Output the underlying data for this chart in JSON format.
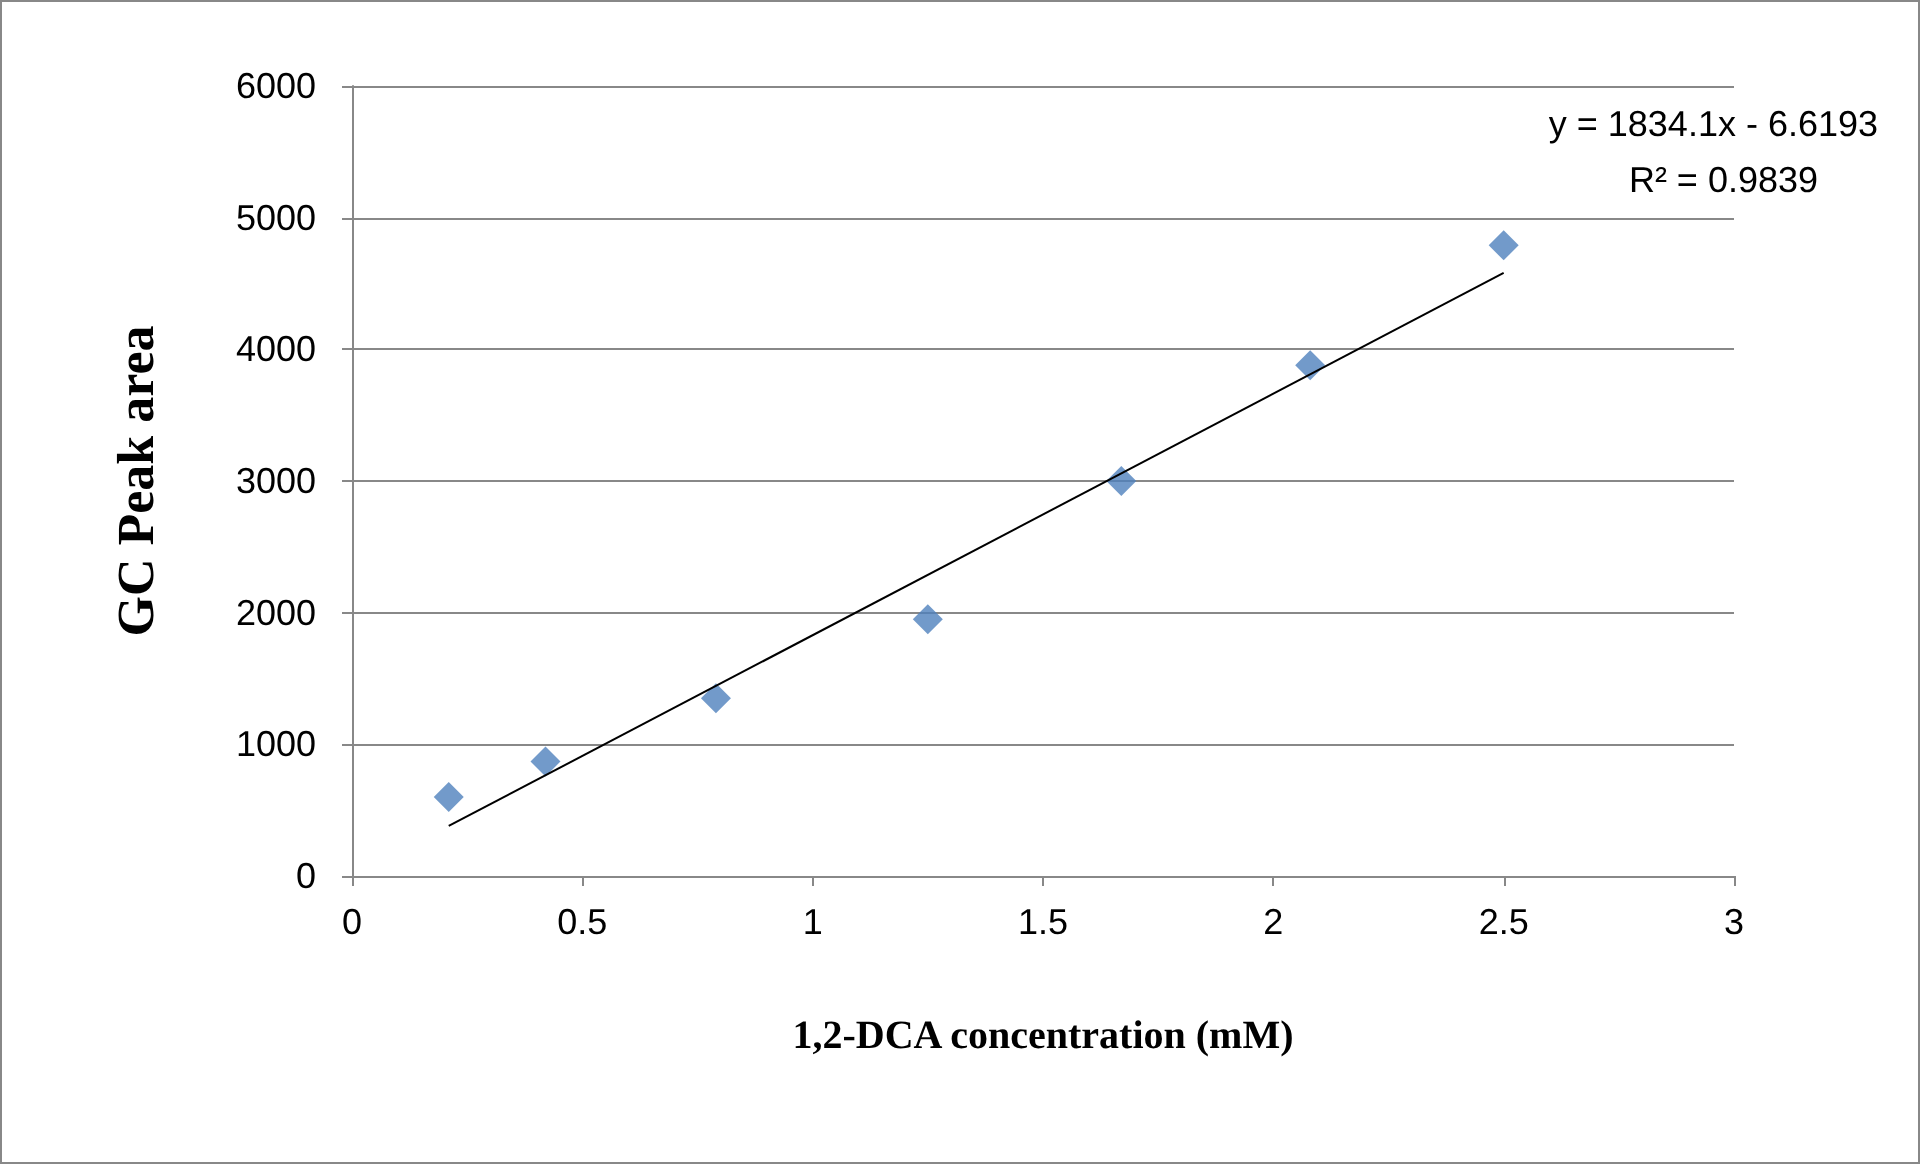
{
  "chart_data": {
    "type": "scatter",
    "xlabel": "1,2-DCA concentration (mM)",
    "ylabel": "GC Peak area",
    "series": [
      {
        "color": "#4f81bd",
        "marker": "diamond",
        "x": [
          0.21,
          0.42,
          0.79,
          1.25,
          1.67,
          2.08,
          2.5
        ],
        "values": [
          600,
          870,
          1350,
          1950,
          3000,
          3880,
          4790
        ]
      },
      {
        "type": "line",
        "color": "#000000",
        "marker": "none",
        "x": [
          0.21,
          2.5
        ],
        "values": [
          380,
          4580
        ]
      }
    ],
    "xlim": [
      0,
      3
    ],
    "xticks": [
      0,
      0.5,
      1,
      1.5,
      2,
      2.5,
      3
    ],
    "ylim": [
      0,
      6000
    ],
    "yticks": [
      0,
      1000,
      2000,
      3000,
      4000,
      5000,
      6000
    ],
    "grid": "y",
    "annotations": [
      "y = 1834.1x - 6.6193",
      "R² = 0.9839"
    ]
  }
}
